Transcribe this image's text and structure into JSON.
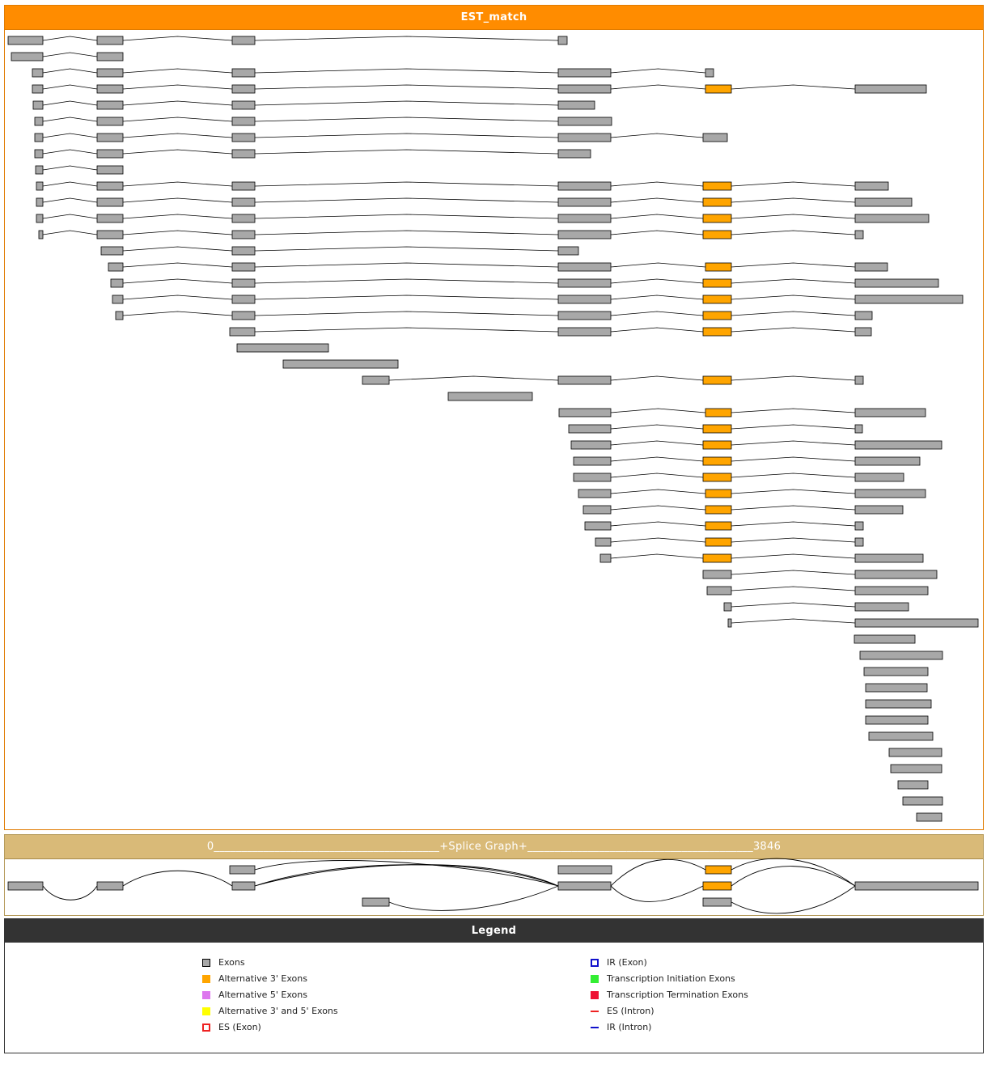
{
  "est_panel": {
    "title": "EST_match"
  },
  "splice_panel": {
    "title": "0_________________________________________+Splice Graph+_________________________________________3846"
  },
  "legend": {
    "title": "Legend",
    "items": [
      {
        "label": "Exons",
        "color": "#a8a8a8",
        "style": "box"
      },
      {
        "label": "Alternative 3' Exons",
        "color": "#ffa500",
        "style": "fill"
      },
      {
        "label": "Alternative 5' Exons",
        "color": "#dd77ee",
        "style": "fill"
      },
      {
        "label": "Alternative 3' and 5' Exons",
        "color": "#ffff00",
        "style": "fill"
      },
      {
        "label": "ES (Exon)",
        "color": "#ee2222",
        "style": "dashed"
      },
      {
        "label": "IR (Exon)",
        "color": "#1111cc",
        "style": "outline"
      },
      {
        "label": "Transcription Initiation Exons",
        "color": "#33ee33",
        "style": "fill"
      },
      {
        "label": "Transcription Termination Exons",
        "color": "#ee1133",
        "style": "fill"
      },
      {
        "label": "ES (Intron)",
        "color": "#ee2222",
        "style": "dashline"
      },
      {
        "label": "IR (Intron)",
        "color": "#1111cc",
        "style": "line"
      }
    ]
  },
  "colors": {
    "exon": "#a8a8a8",
    "alt3": "#ffa500",
    "header_est": "#ff8c00",
    "header_splice": "#d9ba78",
    "header_legend": "#333333"
  }
}
